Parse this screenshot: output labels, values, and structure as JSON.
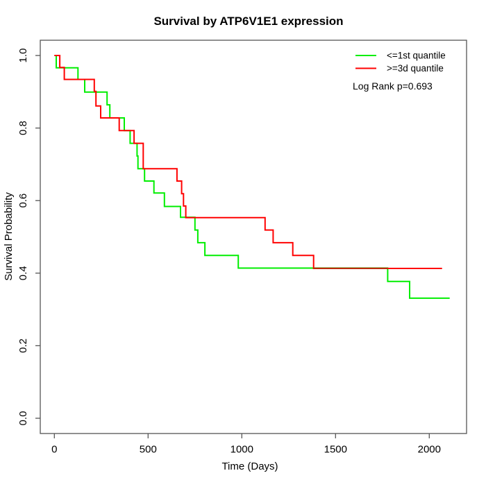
{
  "title": "Survival by ATP6V1E1 expression",
  "axes": {
    "x_label": "Time (Days)",
    "y_label": "Survival Probability",
    "x_ticks": [
      0,
      500,
      1000,
      1500,
      2000
    ],
    "y_tick_labels": [
      "0.0",
      "0.2",
      "0.4",
      "0.6",
      "0.8",
      "1.0"
    ],
    "y_tick_values": [
      0.0,
      0.2,
      0.4,
      0.6,
      0.8,
      1.0
    ]
  },
  "legend": {
    "items": [
      {
        "label": "<=1st quantile",
        "color": "#00ee00"
      },
      {
        "label": ">=3d quantile",
        "color": "#ff0000"
      }
    ],
    "stat_text": "Log Rank p=0.693"
  },
  "chart_data": {
    "type": "line",
    "subtype": "kaplan-meier-step",
    "title": "Survival by ATP6V1E1 expression",
    "xlabel": "Time (Days)",
    "ylabel": "Survival Probability",
    "xlim": [
      0,
      2200
    ],
    "ylim": [
      0.0,
      1.0
    ],
    "grid": false,
    "legend_position": "top-right",
    "annotation": "Log Rank p=0.693",
    "series": [
      {
        "name": "<=1st quantile",
        "color": "#00ee00",
        "start": [
          0,
          1.0
        ],
        "steps": [
          [
            10,
            0.966
          ],
          [
            126,
            0.934
          ],
          [
            162,
            0.899
          ],
          [
            281,
            0.864
          ],
          [
            296,
            0.828
          ],
          [
            373,
            0.793
          ],
          [
            404,
            0.758
          ],
          [
            441,
            0.723
          ],
          [
            446,
            0.688
          ],
          [
            481,
            0.654
          ],
          [
            531,
            0.621
          ],
          [
            587,
            0.584
          ],
          [
            673,
            0.554
          ],
          [
            750,
            0.519
          ],
          [
            765,
            0.484
          ],
          [
            803,
            0.449
          ],
          [
            981,
            0.414
          ],
          [
            1778,
            0.377
          ],
          [
            1895,
            0.331
          ]
        ],
        "end_time": 2109
      },
      {
        "name": ">=3d quantile",
        "color": "#ff0000",
        "start": [
          0,
          1.0
        ],
        "steps": [
          [
            29,
            0.967
          ],
          [
            53,
            0.934
          ],
          [
            213,
            0.901
          ],
          [
            222,
            0.861
          ],
          [
            247,
            0.828
          ],
          [
            346,
            0.793
          ],
          [
            425,
            0.758
          ],
          [
            474,
            0.688
          ],
          [
            654,
            0.654
          ],
          [
            679,
            0.619
          ],
          [
            689,
            0.585
          ],
          [
            701,
            0.553
          ],
          [
            1124,
            0.519
          ],
          [
            1167,
            0.484
          ],
          [
            1272,
            0.449
          ],
          [
            1383,
            0.413
          ]
        ],
        "end_time": 2068
      }
    ]
  }
}
